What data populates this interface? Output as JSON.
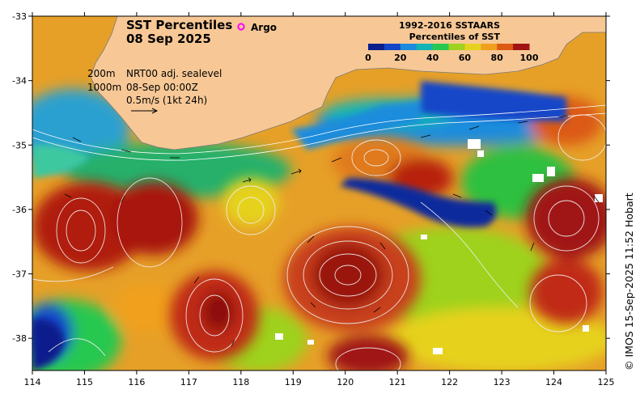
{
  "title": {
    "line1": "SST Percentiles",
    "line2": "08 Sep 2025"
  },
  "argo_label": "Argo",
  "colorbar": {
    "title1": "1992-2016 SSTAARS",
    "title2": "Percentiles of SST",
    "ticks": [
      "0",
      "20",
      "40",
      "60",
      "80",
      "100"
    ],
    "colors": [
      "#0a1e8c",
      "#1446c8",
      "#1e8cdc",
      "#14b4b4",
      "#28c850",
      "#9ed21e",
      "#e6d21e",
      "#f0a01e",
      "#dc5a14",
      "#a01414"
    ]
  },
  "legend": {
    "depth1": "200m",
    "depth2": "1000m",
    "product": "NRT00 adj. sealevel",
    "time": "08-Sep 00:00Z",
    "scale": "0.5m/s (1kt 24h)"
  },
  "axes": {
    "x_ticks": [
      "114",
      "115",
      "116",
      "117",
      "118",
      "119",
      "120",
      "121",
      "122",
      "123",
      "124",
      "125"
    ],
    "y_ticks": [
      "-33",
      "-34",
      "-35",
      "-36",
      "-37",
      "-38"
    ],
    "lon_range": [
      114,
      125
    ],
    "lat_range": [
      -38.5,
      -33
    ]
  },
  "credit": "© IMOS 15-Sep-2025 11:52 Hobart",
  "colors": {
    "land": "#f7c896",
    "ocean_base": "#e6a028",
    "eddy_warm": "#a81810",
    "eddy_cold": "#102a9c",
    "shelf": "#22b0c0"
  }
}
